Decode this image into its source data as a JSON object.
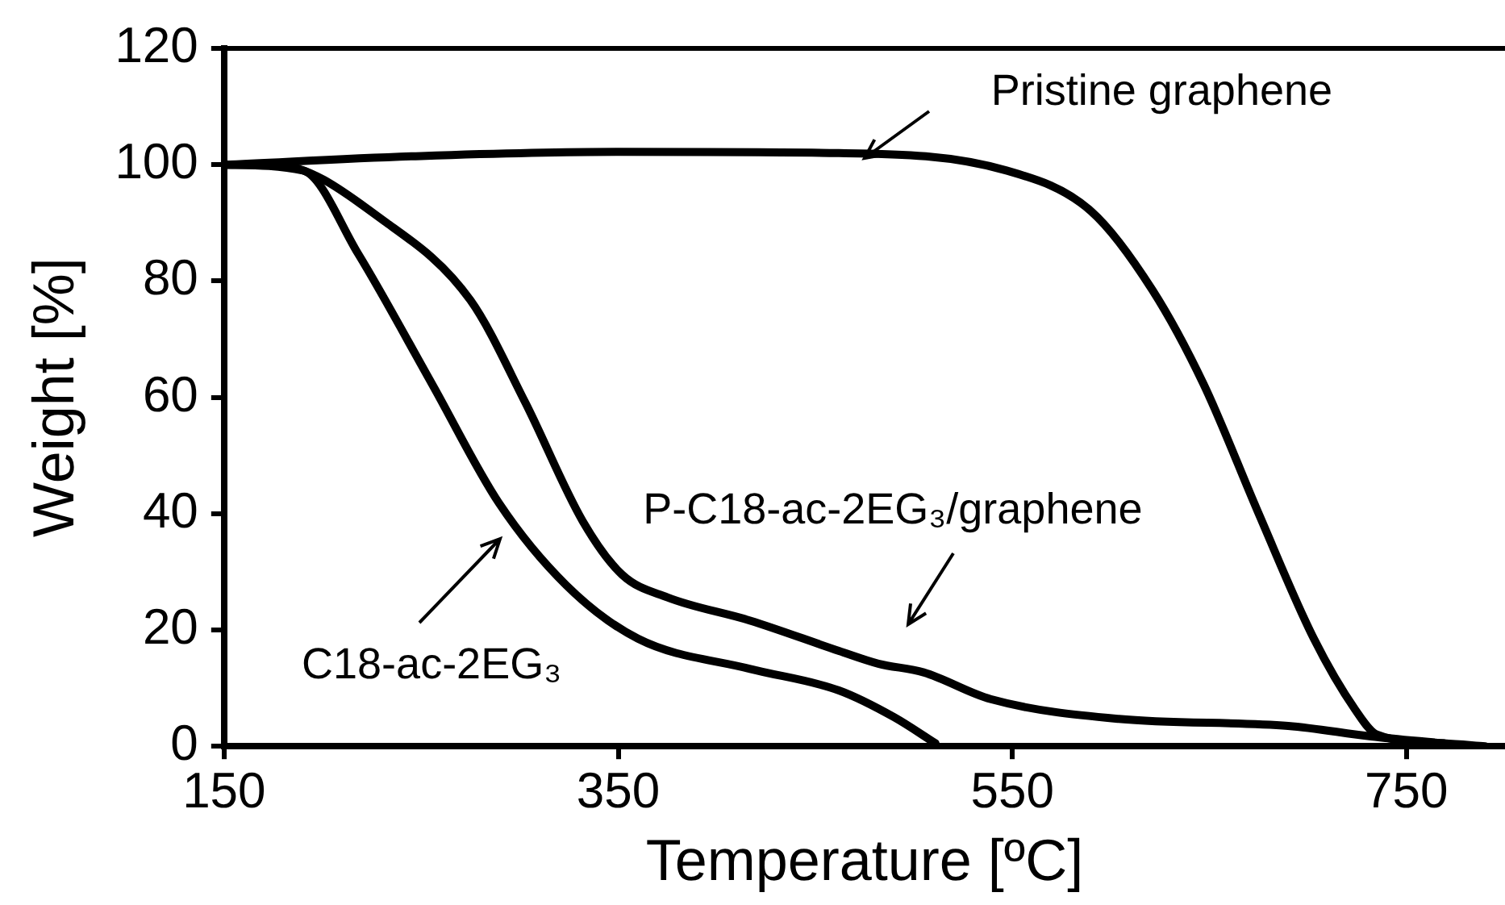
{
  "chart_data": {
    "type": "line",
    "xlabel": "Temperature [ºC]",
    "ylabel": "Weight [%]",
    "xlim": [
      150,
      800
    ],
    "xticks": [
      150,
      350,
      550,
      750
    ],
    "ylim": [
      0,
      120
    ],
    "yticks": [
      0,
      20,
      40,
      60,
      80,
      100,
      120
    ],
    "grid": false,
    "legend": false,
    "marker": "none",
    "line_style": "solid",
    "series": [
      {
        "color": "#000000",
        "x": [
          150,
          250,
          350,
          462,
          547,
          590,
          621,
          647,
          675,
          703,
          724,
          735,
          769,
          790
        ],
        "values": [
          100,
          101.5,
          102.2,
          102,
          99,
          92,
          78.5,
          62.3,
          40,
          18.5,
          6.3,
          2,
          0.5,
          0
        ]
      },
      {
        "color": "#000000",
        "x": [
          150,
          175.5,
          232.5,
          275,
          303,
          332,
          352,
          375,
          417,
          462,
          482,
          505,
          539,
          604,
          690,
          732,
          769
        ],
        "values": [
          100,
          100,
          90,
          76.7,
          59,
          38.7,
          29.5,
          25.6,
          21.6,
          16.4,
          14.2,
          12.7,
          8.1,
          4.7,
          3.5,
          1.7,
          0.5
        ]
      },
      {
        "color": "#000000",
        "x": [
          150,
          190,
          218,
          255.5,
          289.5,
          323.6,
          360,
          417,
          462,
          490,
          511
        ],
        "values": [
          100,
          99,
          84.7,
          62.3,
          41.8,
          27.7,
          18.5,
          13.3,
          9.6,
          5,
          0.5
        ]
      }
    ],
    "annotations": [
      "Pristine graphene",
      "P-C18-ac-2EG₃/graphene",
      "C18-ac-2EG₃"
    ]
  }
}
